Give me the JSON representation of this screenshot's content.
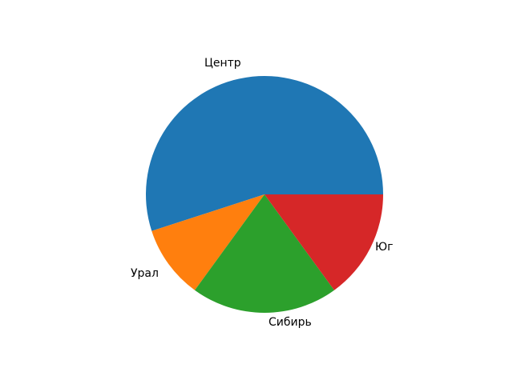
{
  "figure": {
    "background_color": "#ffffff"
  },
  "chart_data": {
    "type": "pie",
    "labels": [
      "Центр",
      "Урал",
      "Сибирь",
      "Юг"
    ],
    "values": [
      55,
      10,
      20,
      15
    ],
    "colors": [
      "#1f77b4",
      "#ff7f0e",
      "#2ca02c",
      "#d62728"
    ],
    "start_angle": 0,
    "direction": "counterclockwise",
    "title": "",
    "legend": "none",
    "label_color": "#000000"
  }
}
